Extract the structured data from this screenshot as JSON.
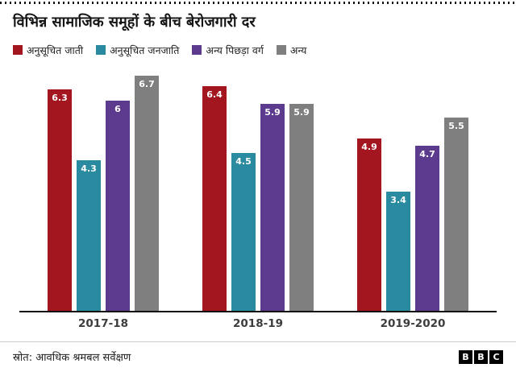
{
  "header": {
    "title": "विभिन्न सामाजिक समूहों के बीच बेरोजगारी दर"
  },
  "chart_data": {
    "type": "bar",
    "title": "विभिन्न सामाजिक समूहों के बीच बेरोजगारी दर",
    "categories": [
      "2017-18",
      "2018-19",
      "2019-2020"
    ],
    "series": [
      {
        "name": "अनुसूचित जाती",
        "color": "#a4161f",
        "values": [
          6.3,
          6.4,
          4.9
        ]
      },
      {
        "name": "अनुसूचित जनजाति",
        "color": "#2a8ba0",
        "values": [
          4.3,
          4.5,
          3.4
        ]
      },
      {
        "name": "अन्य पिछड़ा वर्ग",
        "color": "#5c3a8e",
        "values": [
          6,
          5.9,
          4.7
        ]
      },
      {
        "name": "अन्य",
        "color": "#7f7f7f",
        "values": [
          6.7,
          5.9,
          5.5
        ]
      }
    ],
    "ylim": [
      0,
      7
    ],
    "xlabel": "",
    "ylabel": "",
    "grid": false,
    "legend_position": "top",
    "value_labels_inside_bars": true
  },
  "footer": {
    "source": "स्रोत: आवधिक श्रमबल सर्वेक्षण",
    "logo_letters": [
      "B",
      "B",
      "C"
    ]
  }
}
